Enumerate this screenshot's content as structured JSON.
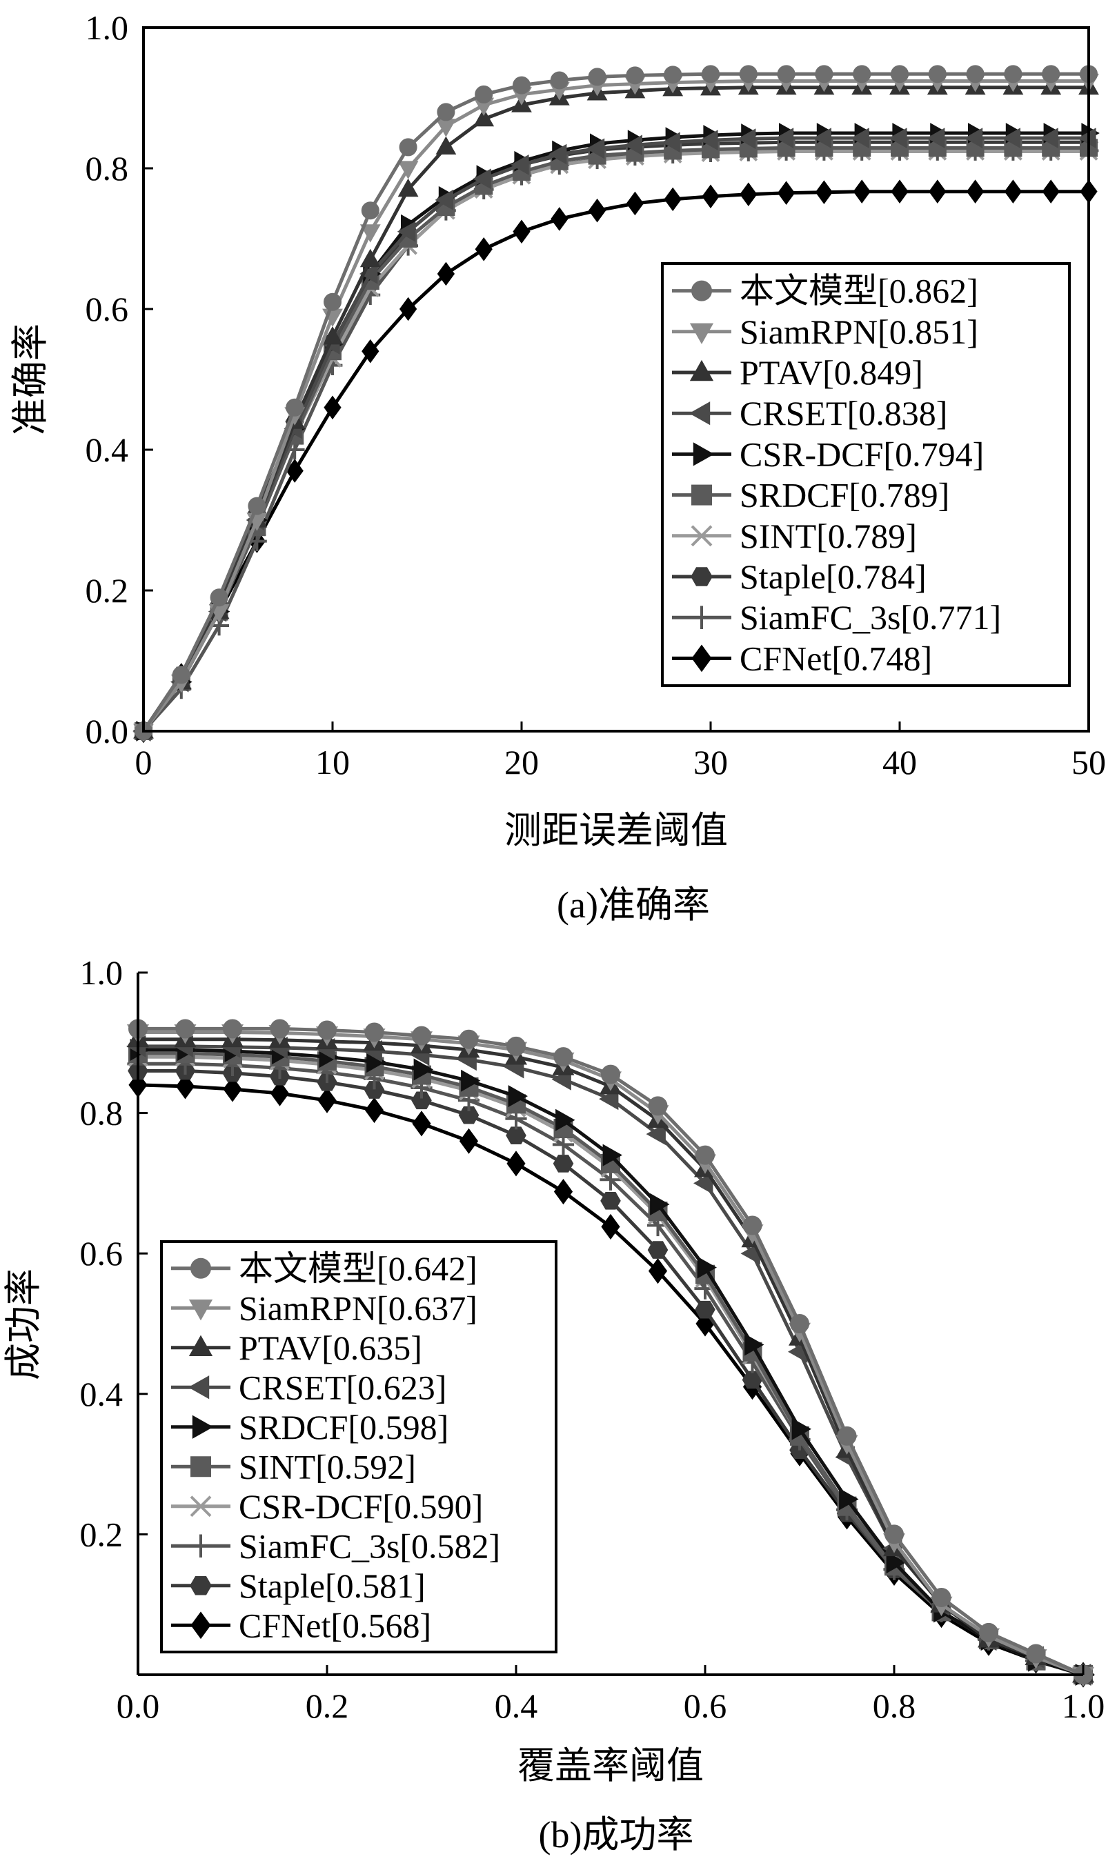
{
  "chart_data": [
    {
      "type": "line",
      "caption": "(a)准确率",
      "xlabel": "测距误差阈值",
      "ylabel": "准确率",
      "xlim": [
        0,
        50
      ],
      "ylim": [
        0,
        1
      ],
      "xticks": [
        "0",
        "10",
        "20",
        "30",
        "40",
        "50"
      ],
      "yticks": [
        "0.0",
        "0.2",
        "0.4",
        "0.6",
        "0.8",
        "1.0"
      ],
      "grid": false,
      "legend_position": "right",
      "x": [
        0,
        2,
        4,
        6,
        8,
        10,
        12,
        14,
        16,
        18,
        20,
        22,
        24,
        26,
        28,
        30,
        32,
        34,
        36,
        38,
        40,
        42,
        44,
        46,
        48,
        50
      ],
      "series": [
        {
          "name": "本文模型[0.862]",
          "marker": "circle",
          "color": "#6e6e6e",
          "values": [
            0,
            0.08,
            0.19,
            0.32,
            0.46,
            0.61,
            0.74,
            0.83,
            0.88,
            0.905,
            0.918,
            0.925,
            0.93,
            0.932,
            0.933,
            0.934,
            0.934,
            0.934,
            0.934,
            0.934,
            0.934,
            0.934,
            0.934,
            0.934,
            0.934,
            0.934
          ]
        },
        {
          "name": "SiamRPN[0.851]",
          "marker": "triangle-down",
          "color": "#8a8a8a",
          "values": [
            0,
            0.07,
            0.17,
            0.3,
            0.45,
            0.59,
            0.71,
            0.8,
            0.86,
            0.89,
            0.905,
            0.912,
            0.918,
            0.92,
            0.922,
            0.923,
            0.924,
            0.924,
            0.924,
            0.924,
            0.924,
            0.924,
            0.924,
            0.924,
            0.924,
            0.924
          ]
        },
        {
          "name": "PTAV[0.849]",
          "marker": "triangle-up",
          "color": "#333333",
          "values": [
            0,
            0.07,
            0.17,
            0.3,
            0.44,
            0.56,
            0.67,
            0.77,
            0.83,
            0.87,
            0.89,
            0.9,
            0.907,
            0.91,
            0.913,
            0.914,
            0.915,
            0.915,
            0.915,
            0.915,
            0.915,
            0.915,
            0.915,
            0.915,
            0.915,
            0.915
          ]
        },
        {
          "name": "CRSET[0.838]",
          "marker": "triangle-left",
          "color": "#4a4a4a",
          "values": [
            0,
            0.07,
            0.17,
            0.3,
            0.43,
            0.55,
            0.65,
            0.71,
            0.755,
            0.785,
            0.805,
            0.82,
            0.828,
            0.833,
            0.837,
            0.84,
            0.842,
            0.843,
            0.843,
            0.843,
            0.843,
            0.843,
            0.843,
            0.843,
            0.843,
            0.843
          ]
        },
        {
          "name": "CSR-DCF[0.794]",
          "marker": "triangle-right",
          "color": "#111111",
          "values": [
            0,
            0.07,
            0.17,
            0.3,
            0.43,
            0.55,
            0.65,
            0.72,
            0.76,
            0.79,
            0.81,
            0.825,
            0.835,
            0.84,
            0.844,
            0.847,
            0.849,
            0.85,
            0.85,
            0.85,
            0.85,
            0.85,
            0.85,
            0.85,
            0.85,
            0.85
          ]
        },
        {
          "name": "SRDCF[0.789]",
          "marker": "square",
          "color": "#5a5a5a",
          "values": [
            0,
            0.07,
            0.17,
            0.29,
            0.42,
            0.54,
            0.64,
            0.7,
            0.745,
            0.775,
            0.795,
            0.81,
            0.818,
            0.822,
            0.825,
            0.827,
            0.828,
            0.829,
            0.829,
            0.829,
            0.829,
            0.829,
            0.829,
            0.829,
            0.829,
            0.829
          ]
        },
        {
          "name": "SINT[0.789]",
          "marker": "x",
          "color": "#9a9a9a",
          "values": [
            0,
            0.07,
            0.17,
            0.29,
            0.42,
            0.53,
            0.63,
            0.69,
            0.74,
            0.77,
            0.79,
            0.805,
            0.812,
            0.817,
            0.82,
            0.822,
            0.823,
            0.824,
            0.824,
            0.824,
            0.824,
            0.824,
            0.824,
            0.824,
            0.824,
            0.824
          ]
        },
        {
          "name": "Staple[0.784]",
          "marker": "hexagon",
          "color": "#3a3a3a",
          "values": [
            0,
            0.08,
            0.18,
            0.31,
            0.44,
            0.55,
            0.64,
            0.71,
            0.755,
            0.785,
            0.805,
            0.818,
            0.826,
            0.83,
            0.833,
            0.835,
            0.836,
            0.837,
            0.837,
            0.837,
            0.837,
            0.837,
            0.837,
            0.837,
            0.837,
            0.837
          ]
        },
        {
          "name": "SiamFC_3s[0.771]",
          "marker": "plus",
          "color": "#555555",
          "values": [
            0,
            0.06,
            0.15,
            0.27,
            0.4,
            0.52,
            0.62,
            0.69,
            0.74,
            0.77,
            0.79,
            0.805,
            0.813,
            0.818,
            0.821,
            0.823,
            0.824,
            0.825,
            0.825,
            0.825,
            0.825,
            0.825,
            0.825,
            0.825,
            0.825,
            0.825
          ]
        },
        {
          "name": "CFNet[0.748]",
          "marker": "diamond",
          "color": "#000000",
          "values": [
            0,
            0.08,
            0.17,
            0.27,
            0.37,
            0.46,
            0.54,
            0.6,
            0.65,
            0.685,
            0.71,
            0.728,
            0.74,
            0.75,
            0.756,
            0.76,
            0.763,
            0.765,
            0.766,
            0.767,
            0.767,
            0.767,
            0.767,
            0.767,
            0.767,
            0.767
          ]
        }
      ]
    },
    {
      "type": "line",
      "caption": "(b)成功率",
      "xlabel": "覆盖率阈值",
      "ylabel": "成功率",
      "xlim": [
        0,
        1
      ],
      "ylim": [
        0,
        1
      ],
      "xticks": [
        "0.0",
        "0.2",
        "0.4",
        "0.6",
        "0.8",
        "1.0"
      ],
      "yticks": [
        "0.2",
        "0.4",
        "0.6",
        "0.8",
        "1.0"
      ],
      "grid": false,
      "legend_position": "left",
      "x": [
        0,
        0.05,
        0.1,
        0.15,
        0.2,
        0.25,
        0.3,
        0.35,
        0.4,
        0.45,
        0.5,
        0.55,
        0.6,
        0.65,
        0.7,
        0.75,
        0.8,
        0.85,
        0.9,
        0.95,
        1.0
      ],
      "series": [
        {
          "name": "本文模型[0.642]",
          "marker": "circle",
          "color": "#6e6e6e",
          "values": [
            0.92,
            0.92,
            0.92,
            0.92,
            0.918,
            0.915,
            0.91,
            0.905,
            0.895,
            0.88,
            0.855,
            0.81,
            0.74,
            0.64,
            0.5,
            0.34,
            0.2,
            0.11,
            0.06,
            0.03,
            0.0
          ]
        },
        {
          "name": "SiamRPN[0.637]",
          "marker": "triangle-down",
          "color": "#8a8a8a",
          "values": [
            0.915,
            0.915,
            0.915,
            0.914,
            0.912,
            0.909,
            0.905,
            0.899,
            0.89,
            0.875,
            0.848,
            0.8,
            0.73,
            0.63,
            0.49,
            0.33,
            0.19,
            0.1,
            0.055,
            0.025,
            0.0
          ]
        },
        {
          "name": "PTAV[0.635]",
          "marker": "triangle-up",
          "color": "#333333",
          "values": [
            0.905,
            0.905,
            0.905,
            0.904,
            0.902,
            0.9,
            0.896,
            0.89,
            0.88,
            0.865,
            0.838,
            0.79,
            0.72,
            0.62,
            0.48,
            0.32,
            0.18,
            0.1,
            0.05,
            0.025,
            0.0
          ]
        },
        {
          "name": "CRSET[0.623]",
          "marker": "triangle-left",
          "color": "#4a4a4a",
          "values": [
            0.895,
            0.895,
            0.894,
            0.893,
            0.891,
            0.888,
            0.883,
            0.876,
            0.865,
            0.848,
            0.82,
            0.77,
            0.7,
            0.6,
            0.46,
            0.31,
            0.18,
            0.1,
            0.05,
            0.025,
            0.0
          ]
        },
        {
          "name": "SRDCF[0.598]",
          "marker": "triangle-right",
          "color": "#111111",
          "values": [
            0.89,
            0.89,
            0.888,
            0.885,
            0.88,
            0.873,
            0.862,
            0.846,
            0.824,
            0.79,
            0.74,
            0.67,
            0.58,
            0.47,
            0.35,
            0.25,
            0.16,
            0.09,
            0.05,
            0.02,
            0.0
          ]
        },
        {
          "name": "SINT[0.592]",
          "marker": "square",
          "color": "#5a5a5a",
          "values": [
            0.885,
            0.885,
            0.883,
            0.88,
            0.874,
            0.866,
            0.854,
            0.837,
            0.813,
            0.778,
            0.728,
            0.66,
            0.57,
            0.46,
            0.34,
            0.24,
            0.155,
            0.09,
            0.05,
            0.02,
            0.0
          ]
        },
        {
          "name": "CSR-DCF[0.590]",
          "marker": "x",
          "color": "#9a9a9a",
          "values": [
            0.88,
            0.88,
            0.878,
            0.875,
            0.869,
            0.861,
            0.849,
            0.832,
            0.808,
            0.772,
            0.722,
            0.655,
            0.565,
            0.455,
            0.34,
            0.24,
            0.155,
            0.09,
            0.05,
            0.02,
            0.0
          ]
        },
        {
          "name": "SiamFC_3s[0.582]",
          "marker": "plus",
          "color": "#555555",
          "values": [
            0.87,
            0.87,
            0.868,
            0.864,
            0.858,
            0.849,
            0.836,
            0.818,
            0.792,
            0.755,
            0.705,
            0.64,
            0.55,
            0.445,
            0.335,
            0.235,
            0.15,
            0.09,
            0.05,
            0.02,
            0.0
          ]
        },
        {
          "name": "Staple[0.581]",
          "marker": "hexagon",
          "color": "#3a3a3a",
          "values": [
            0.86,
            0.86,
            0.857,
            0.852,
            0.844,
            0.833,
            0.818,
            0.797,
            0.768,
            0.728,
            0.675,
            0.605,
            0.52,
            0.42,
            0.32,
            0.23,
            0.15,
            0.09,
            0.05,
            0.02,
            0.0
          ]
        },
        {
          "name": "CFNet[0.568]",
          "marker": "diamond",
          "color": "#000000",
          "values": [
            0.84,
            0.838,
            0.834,
            0.828,
            0.818,
            0.804,
            0.785,
            0.76,
            0.728,
            0.688,
            0.638,
            0.575,
            0.5,
            0.41,
            0.315,
            0.225,
            0.145,
            0.085,
            0.045,
            0.02,
            0.0
          ]
        }
      ]
    }
  ]
}
